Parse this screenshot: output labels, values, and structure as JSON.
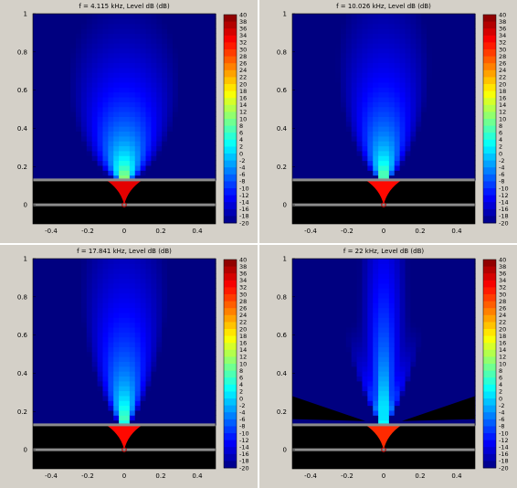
{
  "chart_data": [
    {
      "type": "heatmap",
      "title": "f = 4.115 kHz, Level dB  (dB)",
      "xlabel": "",
      "ylabel": "",
      "xlim": [
        -0.5,
        0.5
      ],
      "ylim": [
        -0.1,
        1.0
      ],
      "x_ticks": [
        "-0.4",
        "-0.2",
        "0",
        "0.2",
        "0.4"
      ],
      "y_ticks": [
        "0",
        "0.2",
        "0.4",
        "0.6",
        "0.8",
        "1"
      ],
      "colorbar": {
        "min": -20,
        "max": 40,
        "ticks": [
          "40",
          "38",
          "36",
          "34",
          "32",
          "30",
          "28",
          "26",
          "24",
          "22",
          "20",
          "18",
          "16",
          "14",
          "12",
          "10",
          "8",
          "6",
          "4",
          "2",
          "0",
          "-2",
          "-4",
          "-6",
          "-8",
          "-10",
          "-12",
          "-14",
          "-16",
          "-18",
          "-20"
        ]
      },
      "field": {
        "source_level": 26,
        "beam_spread": 0.55,
        "decay": 30
      }
    },
    {
      "type": "heatmap",
      "title": "f = 10.026 kHz, Level dB  (dB)",
      "xlabel": "",
      "ylabel": "",
      "xlim": [
        -0.5,
        0.5
      ],
      "ylim": [
        -0.1,
        1.0
      ],
      "x_ticks": [
        "-0.4",
        "-0.2",
        "0",
        "0.2",
        "0.4"
      ],
      "y_ticks": [
        "0",
        "0.2",
        "0.4",
        "0.6",
        "0.8",
        "1"
      ],
      "colorbar": {
        "min": -20,
        "max": 40,
        "ticks": [
          "40",
          "38",
          "36",
          "34",
          "32",
          "30",
          "28",
          "26",
          "24",
          "22",
          "20",
          "18",
          "16",
          "14",
          "12",
          "10",
          "8",
          "6",
          "4",
          "2",
          "0",
          "-2",
          "-4",
          "-6",
          "-8",
          "-10",
          "-12",
          "-14",
          "-16",
          "-18",
          "-20"
        ]
      },
      "field": {
        "source_level": 24,
        "beam_spread": 0.42,
        "decay": 28
      }
    },
    {
      "type": "heatmap",
      "title": "f = 17.841 kHz, Level dB  (dB)",
      "xlabel": "",
      "ylabel": "",
      "xlim": [
        -0.5,
        0.5
      ],
      "ylim": [
        -0.1,
        1.0
      ],
      "x_ticks": [
        "-0.4",
        "-0.2",
        "0",
        "0.2",
        "0.4"
      ],
      "y_ticks": [
        "0",
        "0.2",
        "0.4",
        "0.6",
        "0.8",
        "1"
      ],
      "colorbar": {
        "min": -20,
        "max": 40,
        "ticks": [
          "40",
          "38",
          "36",
          "34",
          "32",
          "30",
          "28",
          "26",
          "24",
          "22",
          "20",
          "18",
          "16",
          "14",
          "12",
          "10",
          "8",
          "6",
          "4",
          "2",
          "0",
          "-2",
          "-4",
          "-6",
          "-8",
          "-10",
          "-12",
          "-14",
          "-16",
          "-18",
          "-20"
        ]
      },
      "field": {
        "source_level": 24,
        "beam_spread": 0.34,
        "decay": 27
      }
    },
    {
      "type": "heatmap",
      "title": "f = 22 kHz, Level dB  (dB)",
      "xlabel": "",
      "ylabel": "",
      "xlim": [
        -0.5,
        0.5
      ],
      "ylim": [
        -0.1,
        1.0
      ],
      "x_ticks": [
        "-0.4",
        "-0.2",
        "0",
        "0.2",
        "0.4"
      ],
      "y_ticks": [
        "0",
        "0.2",
        "0.4",
        "0.6",
        "0.8",
        "1"
      ],
      "colorbar": {
        "min": -20,
        "max": 40,
        "ticks": [
          "40",
          "38",
          "36",
          "34",
          "32",
          "30",
          "28",
          "26",
          "24",
          "22",
          "20",
          "18",
          "16",
          "14",
          "12",
          "10",
          "8",
          "6",
          "4",
          "2",
          "0",
          "-2",
          "-4",
          "-6",
          "-8",
          "-10",
          "-12",
          "-14",
          "-16",
          "-18",
          "-20"
        ]
      },
      "field": {
        "source_level": 22,
        "beam_spread": 0.3,
        "decay": 26,
        "lobes": true
      }
    }
  ]
}
